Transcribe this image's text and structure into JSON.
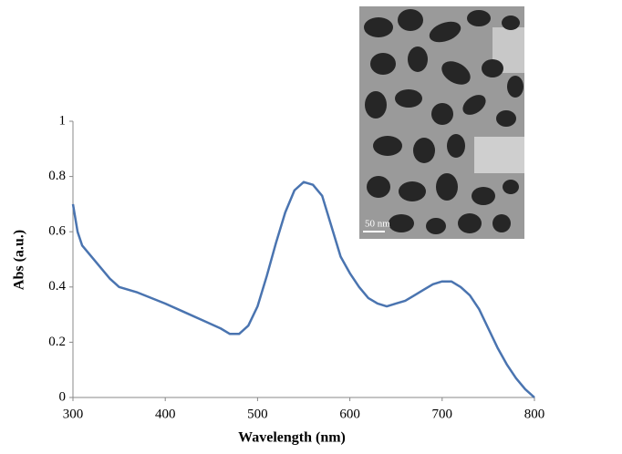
{
  "chart_data": {
    "type": "line",
    "xlabel": "Wavelength (nm)",
    "ylabel": "Abs (a.u.)",
    "inset_label": "50 nm",
    "x": [
      300,
      305,
      310,
      320,
      330,
      340,
      350,
      370,
      400,
      420,
      440,
      460,
      470,
      480,
      490,
      500,
      510,
      520,
      530,
      540,
      550,
      560,
      570,
      580,
      590,
      600,
      610,
      620,
      630,
      640,
      650,
      660,
      670,
      680,
      690,
      700,
      710,
      720,
      730,
      740,
      750,
      760,
      770,
      780,
      790,
      800
    ],
    "series": [
      {
        "color": "#4a74b0",
        "values": [
          0.7,
          0.6,
          0.55,
          0.51,
          0.47,
          0.43,
          0.4,
          0.38,
          0.34,
          0.31,
          0.28,
          0.25,
          0.23,
          0.23,
          0.26,
          0.33,
          0.44,
          0.56,
          0.67,
          0.75,
          0.78,
          0.77,
          0.73,
          0.62,
          0.51,
          0.45,
          0.4,
          0.36,
          0.34,
          0.33,
          0.34,
          0.35,
          0.37,
          0.39,
          0.41,
          0.42,
          0.42,
          0.4,
          0.37,
          0.32,
          0.25,
          0.18,
          0.12,
          0.07,
          0.03,
          0.0
        ]
      }
    ],
    "xlim": [
      300,
      800
    ],
    "xticks": [
      300,
      400,
      500,
      600,
      700,
      800
    ],
    "ylim": [
      0,
      1
    ],
    "yticks": [
      0,
      0.2,
      0.4,
      0.6,
      0.8,
      1
    ],
    "grid": false
  }
}
